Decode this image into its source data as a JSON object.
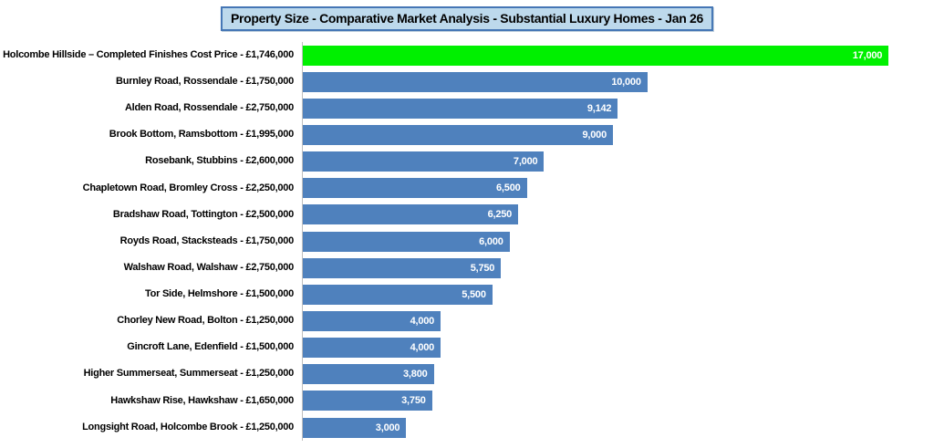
{
  "title": "Property Size - Comparative Market Analysis - Substantial Luxury Homes - Jan 26",
  "colors": {
    "highlight_bar": "#00F000",
    "default_bar": "#4F81BD",
    "title_fill": "#BDD9EC",
    "title_border": "#4576B5",
    "axis_line": "#BFBFBF",
    "bar_value_text": "#FFFFFF",
    "category_text": "#000000",
    "background": "#FFFFFF"
  },
  "chart_data": {
    "type": "bar",
    "orientation": "horizontal",
    "title": "Property Size - Comparative Market Analysis - Substantial Luxury Homes - Jan 26",
    "xlabel": "",
    "ylabel": "",
    "xlim": [
      0,
      18000
    ],
    "grid": false,
    "legend": false,
    "value_labels_position": "inside-end",
    "highlight_index": 0,
    "categories": [
      "Holcombe Hillside – Completed Finishes Cost Price - £1,746,000",
      "Burnley Road, Rossendale - £1,750,000",
      "Alden Road, Rossendale - £2,750,000",
      "Brook Bottom, Ramsbottom - £1,995,000",
      "Rosebank, Stubbins - £2,600,000",
      "Chapletown Road, Bromley Cross - £2,250,000",
      "Bradshaw Road, Tottington - £2,500,000",
      "Royds Road, Stacksteads - £1,750,000",
      "Walshaw Road, Walshaw - £2,750,000",
      "Tor Side, Helmshore - £1,500,000",
      "Chorley New Road, Bolton - £1,250,000",
      "Gincroft Lane, Edenfield - £1,500,000",
      "Higher Summerseat, Summerseat - £1,250,000",
      "Hawkshaw Rise, Hawkshaw - £1,650,000",
      "Longsight Road, Holcombe Brook - £1,250,000"
    ],
    "values": [
      17000,
      10000,
      9142,
      9000,
      7000,
      6500,
      6250,
      6000,
      5750,
      5500,
      4000,
      4000,
      3800,
      3750,
      3000
    ],
    "value_labels": [
      "17,000",
      "10,000",
      "9,142",
      "9,000",
      "7,000",
      "6,500",
      "6,250",
      "6,000",
      "5,750",
      "5,500",
      "4,000",
      "4,000",
      "3,800",
      "3,750",
      "3,000"
    ]
  }
}
